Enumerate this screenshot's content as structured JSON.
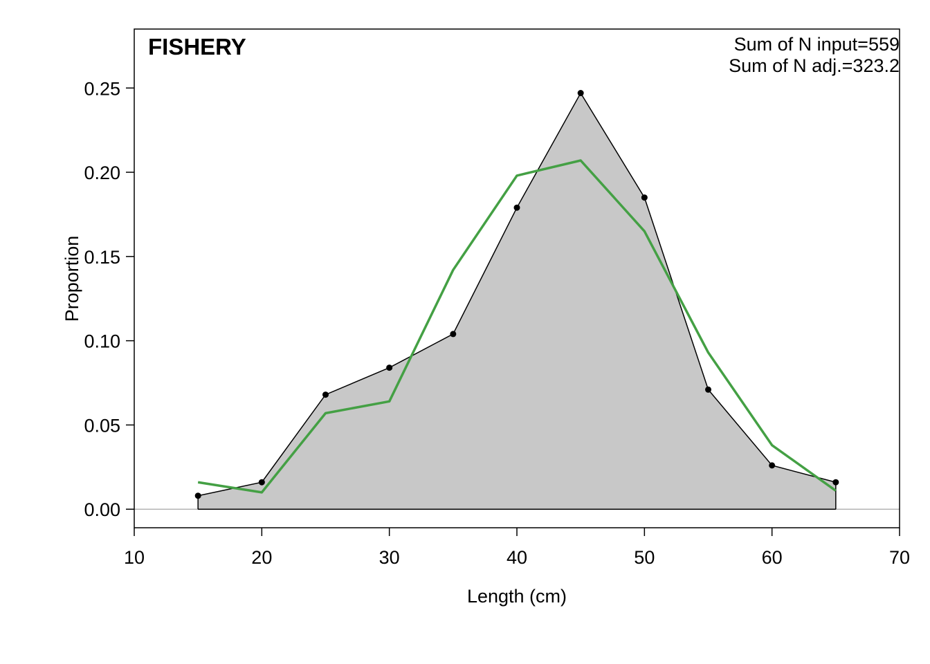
{
  "chart_data": {
    "type": "area",
    "title": "FISHERY",
    "xlabel": "Length (cm)",
    "ylabel": "Proportion",
    "xlim": [
      10,
      70
    ],
    "ylim": [
      -0.011,
      0.285
    ],
    "x_ticks": [
      10,
      20,
      30,
      40,
      50,
      60,
      70
    ],
    "y_ticks": [
      0.0,
      0.05,
      0.1,
      0.15,
      0.2,
      0.25
    ],
    "y_tick_labels": [
      "0.00",
      "0.05",
      "0.10",
      "0.15",
      "0.20",
      "0.25"
    ],
    "annotations": [
      "Sum of N input=559",
      "Sum of N adj.=323.2"
    ],
    "grid": false,
    "series": [
      {
        "kind": "observed",
        "style": "filled area with points",
        "x": [
          15,
          20,
          25,
          30,
          35,
          40,
          45,
          50,
          55,
          60,
          65
        ],
        "values": [
          0.008,
          0.016,
          0.068,
          0.084,
          0.104,
          0.179,
          0.247,
          0.185,
          0.071,
          0.026,
          0.016
        ]
      },
      {
        "kind": "expected",
        "style": "line",
        "x": [
          15,
          20,
          25,
          30,
          35,
          40,
          45,
          50,
          55,
          60,
          65
        ],
        "values": [
          0.016,
          0.01,
          0.057,
          0.064,
          0.142,
          0.198,
          0.207,
          0.165,
          0.093,
          0.038,
          0.011
        ]
      }
    ]
  },
  "colors": {
    "fill": "#c8c8c8",
    "observed_line": "#000000",
    "expected_line": "#44a044",
    "zero_line": "#b4b4b4",
    "frame": "#000000"
  }
}
